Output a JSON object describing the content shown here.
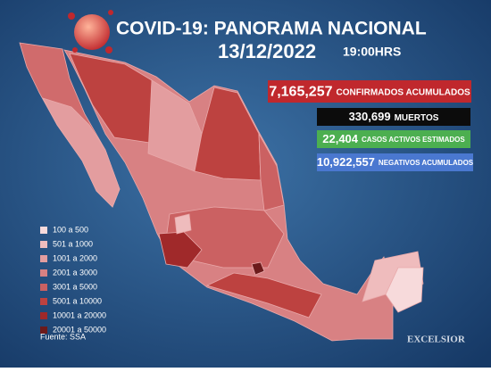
{
  "header": {
    "title": "COVID-19: PANORAMA NACIONAL",
    "date": "13/12/2022",
    "time": "19:00HRS"
  },
  "stats": [
    {
      "value": "7,165,257",
      "label": "CONFIRMADOS ACUMULADOS",
      "color": "#c0282d"
    },
    {
      "value": "330,699",
      "label": "MUERTOS",
      "color": "#0c0c0c"
    },
    {
      "value": "22,404",
      "label": "CASOS ACTIVOS ESTIMADOS",
      "color": "#4caf50"
    },
    {
      "value": "10,922,557",
      "label": "NEGATIVOS ACUMULADOS",
      "color": "#4a78d0"
    }
  ],
  "legend": [
    {
      "label": "100 a 500",
      "color": "#f7dadb"
    },
    {
      "label": "501 a 1000",
      "color": "#efbcbd"
    },
    {
      "label": "1001 a 2000",
      "color": "#e39d9f"
    },
    {
      "label": "2001 a 3000",
      "color": "#d88183"
    },
    {
      "label": "3001 a 5000",
      "color": "#cb6162"
    },
    {
      "label": "5001 a 10000",
      "color": "#bd4240"
    },
    {
      "label": "10001 a 20000",
      "color": "#a0292a"
    },
    {
      "label": "20001 a 50000",
      "color": "#6c1a1b"
    }
  ],
  "source": "Fuente: SSA",
  "logo": "EXCELSIOR"
}
